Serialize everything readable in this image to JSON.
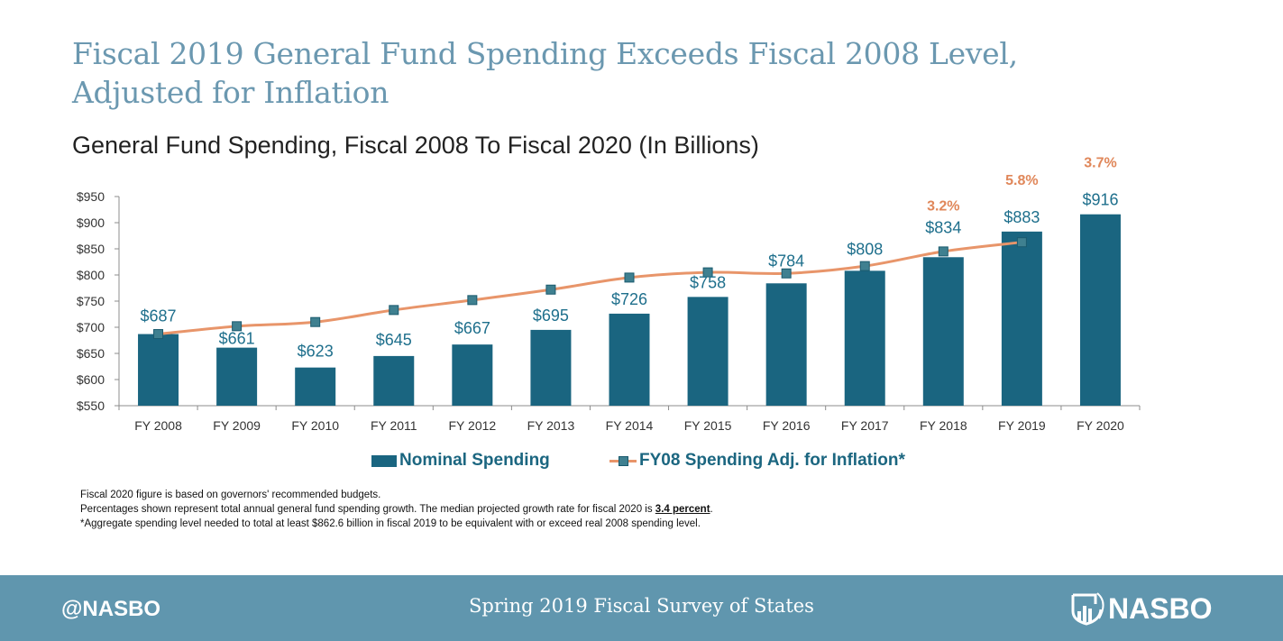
{
  "page": {
    "title_line1": "Fiscal 2019 General Fund Spending Exceeds Fiscal 2008 Level,",
    "title_line2": "Adjusted for Inflation"
  },
  "notes": {
    "line1": "Fiscal 2020 figure is based on governors' recommended budgets.",
    "line2_prefix": "Percentages shown represent total annual general fund spending growth. The median projected growth rate for fiscal 2020 is ",
    "line2_bold": "3.4 percent",
    "line2_suffix": ".",
    "line3": "*Aggregate spending level needed to total at least $862.6 billion in fiscal 2019 to be equivalent with  or exceed real 2008 spending level."
  },
  "footer": {
    "handle": "@NASBO",
    "source": "Spring 2019 Fiscal Survey of States",
    "logo_text": "NASBO",
    "logo_icon": "nasbo-shield-bars-icon"
  },
  "colors": {
    "bar": "#1a6580",
    "line": "#e8956a",
    "marker": "#3f8090",
    "growth_label": "#e0875a",
    "title": "#6b98b0",
    "footer_bg": "#6096ae"
  },
  "chart_data": {
    "type": "bar",
    "title": "General Fund Spending, Fiscal 2008 To Fiscal 2020 (In Billions)",
    "xlabel": "",
    "ylabel": "",
    "ylim": [
      550,
      950
    ],
    "yticks": [
      550,
      600,
      650,
      700,
      750,
      800,
      850,
      900,
      950
    ],
    "ytick_labels": [
      "$550",
      "$600",
      "$650",
      "$700",
      "$750",
      "$800",
      "$850",
      "$900",
      "$950"
    ],
    "grid": false,
    "legend_position": "bottom",
    "categories": [
      "FY 2008",
      "FY 2009",
      "FY 2010",
      "FY 2011",
      "FY 2012",
      "FY 2013",
      "FY 2014",
      "FY 2015",
      "FY 2016",
      "FY 2017",
      "FY 2018",
      "FY 2019",
      "FY 2020"
    ],
    "series": [
      {
        "name": "Nominal Spending",
        "type": "bar",
        "values": [
          687,
          661,
          623,
          645,
          667,
          695,
          726,
          758,
          784,
          808,
          834,
          883,
          916
        ],
        "labels": [
          "$687",
          "$661",
          "$623",
          "$645",
          "$667",
          "$695",
          "$726",
          "$758",
          "$784",
          "$808",
          "$834",
          "$883",
          "$916"
        ]
      },
      {
        "name": "FY08 Spending Adj. for Inflation*",
        "type": "line",
        "values": [
          687,
          702,
          710,
          733,
          752,
          772,
          795,
          805,
          803,
          817,
          845,
          862.6,
          null
        ]
      }
    ],
    "annotations": [
      {
        "category": "FY 2018",
        "text": "3.2%"
      },
      {
        "category": "FY 2019",
        "text": "5.8%"
      },
      {
        "category": "FY 2020",
        "text": "3.7%"
      }
    ]
  }
}
